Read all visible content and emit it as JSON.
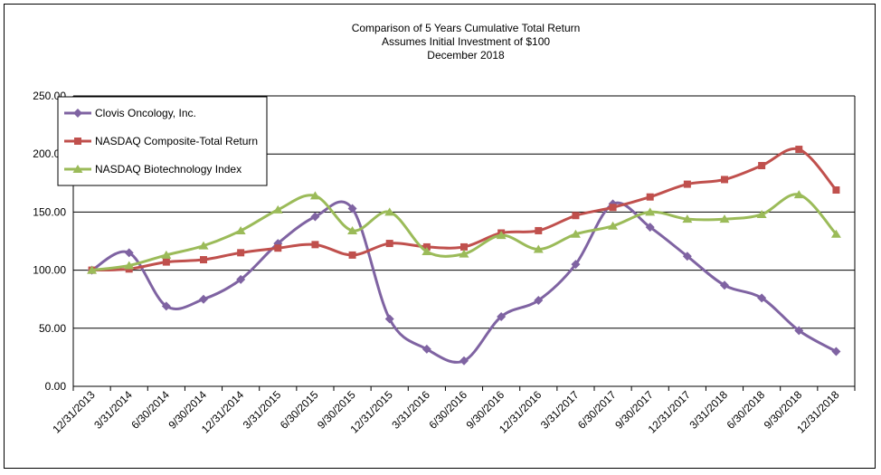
{
  "chart_data": {
    "type": "line",
    "title": [
      "Comparison of 5 Years Cumulative Total Return",
      "Assumes Initial Investment of $100",
      "December 2018"
    ],
    "categories": [
      "12/31/2013",
      "3/31/2014",
      "6/30/2014",
      "9/30/2014",
      "12/31/2014",
      "3/31/2015",
      "6/30/2015",
      "9/30/2015",
      "12/31/2015",
      "3/31/2016",
      "6/30/2016",
      "9/30/2016",
      "12/31/2016",
      "3/31/2017",
      "6/30/2017",
      "9/30/2017",
      "12/31/2017",
      "3/31/2018",
      "6/30/2018",
      "9/30/2018",
      "12/31/2018"
    ],
    "ylim": [
      0,
      250
    ],
    "yticks": [
      "0.00",
      "50.00",
      "100.00",
      "150.00",
      "200.00",
      "250.00"
    ],
    "grid": true,
    "legend_position": "top-left",
    "series": [
      {
        "name": "Clovis Oncology, Inc.",
        "color": "#7f63a2",
        "marker": "diamond",
        "values": [
          100,
          115,
          69,
          75,
          92,
          123,
          146,
          153,
          58,
          32,
          22,
          60,
          74,
          105,
          157,
          137,
          112,
          87,
          76,
          48,
          30
        ]
      },
      {
        "name": "NASDAQ Composite-Total Return",
        "color": "#c0504d",
        "marker": "square",
        "values": [
          100,
          101,
          107,
          109,
          115,
          119,
          122,
          113,
          123,
          120,
          120,
          132,
          134,
          147,
          154,
          163,
          174,
          178,
          190,
          204,
          169
        ]
      },
      {
        "name": "NASDAQ Biotechnology Index",
        "color": "#9bbb59",
        "marker": "triangle",
        "values": [
          100,
          104,
          113,
          121,
          134,
          152,
          164,
          134,
          150,
          116,
          114,
          130,
          118,
          131,
          138,
          150,
          144,
          144,
          148,
          165,
          131
        ]
      }
    ]
  }
}
